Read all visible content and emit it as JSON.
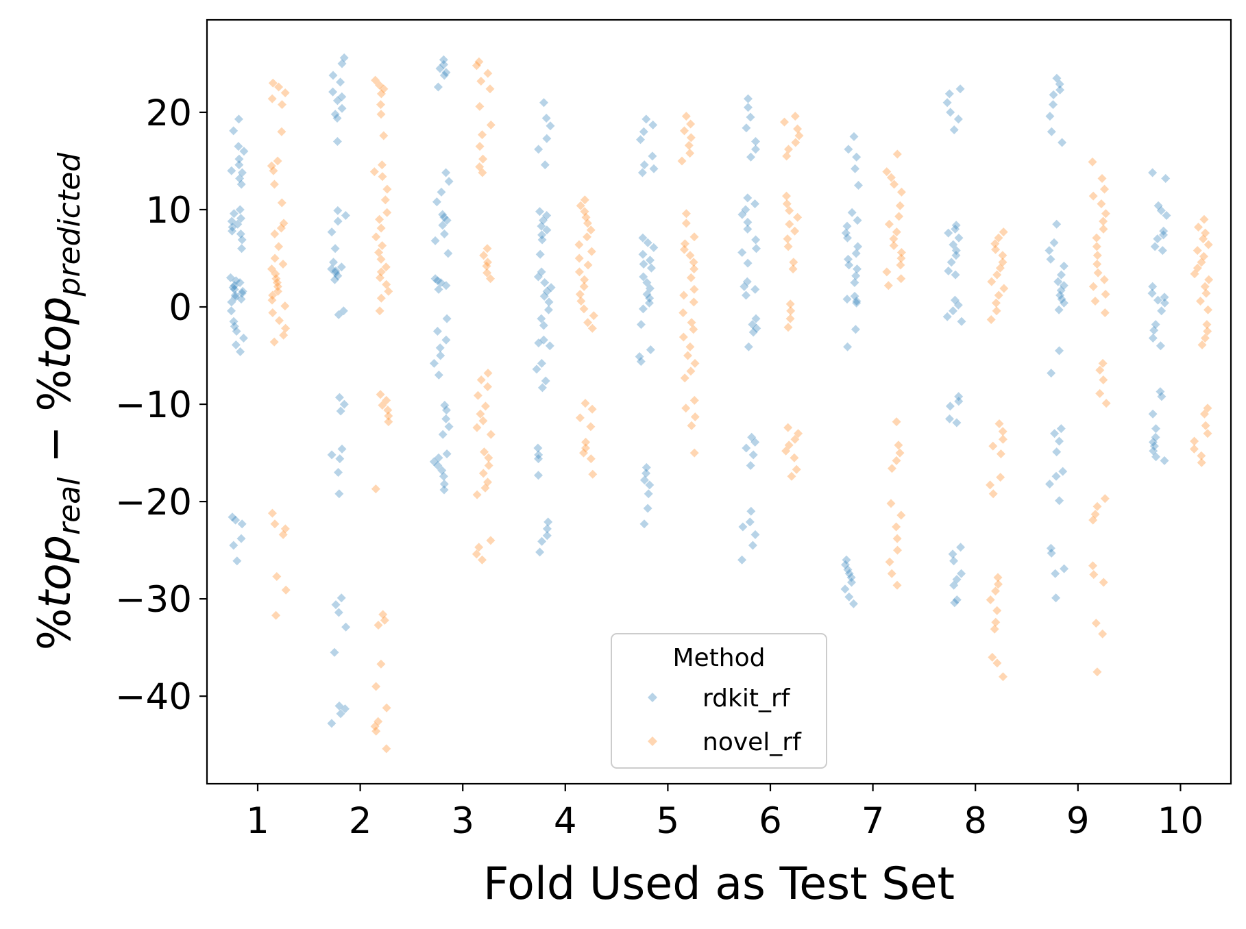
{
  "chart_data": {
    "type": "scatter",
    "subtype": "strip",
    "xlabel": "Fold Used as Test Set",
    "ylabel": {
      "prefix": "%",
      "term1": "top",
      "sub1": "real",
      "minus": " − %",
      "term2": "top",
      "sub2": "predicted"
    },
    "categories": [
      "1",
      "2",
      "3",
      "4",
      "5",
      "6",
      "7",
      "8",
      "9",
      "10"
    ],
    "yticks": [
      -40,
      -30,
      -20,
      -10,
      0,
      10,
      20
    ],
    "ytick_labels": [
      "−40",
      "−30",
      "−20",
      "−10",
      "0",
      "10",
      "20"
    ],
    "ylim": [
      -49,
      29.5
    ],
    "grid": false,
    "legend": {
      "title": "Method",
      "placement": "lower center"
    },
    "series": [
      {
        "name": "rdkit_rf",
        "color": "#1f77b4",
        "marker": "diamond",
        "values": [
          [
            19.3,
            18.1,
            16.5,
            16.0,
            15.2,
            14.6,
            14.0,
            13.8,
            13.2,
            12.6,
            10.0,
            9.6,
            9.1,
            8.8,
            8.5,
            8.2,
            7.8,
            7.5,
            6.9,
            6.0,
            3.0,
            2.7,
            2.5,
            2.2,
            2.0,
            1.8,
            1.6,
            1.4,
            1.2,
            1.0,
            0.8,
            0.5,
            -0.4,
            -1.5,
            -2.0,
            -2.5,
            -3.2,
            -3.9,
            -4.6,
            -21.6,
            -21.9,
            -22.3,
            -23.8,
            -24.5,
            -26.1
          ],
          [
            25.6,
            25.0,
            23.8,
            23.1,
            22.1,
            21.6,
            21.2,
            20.4,
            19.8,
            19.4,
            17.0,
            9.9,
            9.4,
            8.8,
            7.7,
            6.0,
            4.6,
            4.1,
            3.9,
            3.7,
            3.5,
            3.2,
            2.8,
            -0.4,
            -0.8,
            -9.3,
            -10.0,
            -10.7,
            -14.6,
            -15.2,
            -15.6,
            -17.0,
            -19.2,
            -29.9,
            -30.6,
            -31.4,
            -32.9,
            -35.5,
            -41.0,
            -41.3,
            -41.8,
            -42.8
          ],
          [
            25.4,
            24.9,
            24.5,
            24.1,
            23.8,
            22.6,
            13.8,
            12.9,
            11.8,
            10.8,
            9.5,
            9.2,
            8.9,
            8.4,
            7.5,
            6.8,
            5.5,
            2.9,
            2.7,
            2.5,
            2.2,
            1.8,
            -1.2,
            -2.5,
            -3.4,
            -4.2,
            -5.0,
            -5.8,
            -7.0,
            -10.1,
            -10.6,
            -11.5,
            -12.3,
            -13.1,
            -15.1,
            -15.5,
            -15.9,
            -16.3,
            -16.8,
            -17.4,
            -18.2,
            -18.8
          ],
          [
            21.0,
            19.4,
            18.6,
            17.3,
            16.2,
            14.6,
            9.8,
            9.4,
            8.9,
            8.3,
            7.9,
            7.4,
            6.9,
            5.4,
            3.6,
            3.1,
            2.5,
            2.0,
            1.6,
            1.1,
            0.5,
            -0.3,
            -1.2,
            -1.9,
            -3.4,
            -3.7,
            -4.0,
            -5.8,
            -6.4,
            -7.6,
            -8.3,
            -14.5,
            -15.2,
            -15.6,
            -17.3,
            -22.1,
            -22.8,
            -23.5,
            -24.1,
            -25.2
          ],
          [
            19.3,
            18.7,
            18.0,
            17.2,
            15.5,
            14.6,
            14.2,
            13.8,
            7.1,
            6.6,
            6.1,
            5.4,
            4.8,
            4.4,
            4.0,
            3.1,
            2.5,
            1.9,
            1.3,
            0.9,
            0.4,
            -0.2,
            -1.8,
            -4.4,
            -5.1,
            -5.6,
            -16.5,
            -17.1,
            -17.8,
            -18.3,
            -19.2,
            -20.7,
            -22.3
          ],
          [
            21.4,
            20.5,
            19.5,
            18.4,
            17.0,
            16.2,
            15.4,
            11.2,
            10.6,
            10.0,
            9.5,
            8.7,
            8.0,
            6.9,
            6.0,
            5.6,
            4.5,
            2.6,
            2.1,
            1.8,
            1.2,
            -1.2,
            -1.8,
            -2.2,
            -2.6,
            -4.1,
            -13.4,
            -13.9,
            -14.5,
            -15.2,
            -16.3,
            -21.0,
            -22.1,
            -22.6,
            -23.4,
            -24.5,
            -26.0
          ],
          [
            17.5,
            16.2,
            15.4,
            14.2,
            12.5,
            9.7,
            8.9,
            8.3,
            7.6,
            7.1,
            6.2,
            5.5,
            4.9,
            4.3,
            3.9,
            3.2,
            2.5,
            1.1,
            0.8,
            0.6,
            0.4,
            -2.3,
            -4.1,
            -26.0,
            -26.5,
            -27.0,
            -27.4,
            -27.8,
            -28.3,
            -29.0,
            -29.8,
            -30.5
          ],
          [
            22.4,
            21.9,
            21.0,
            20.0,
            19.3,
            18.2,
            8.4,
            8.0,
            7.6,
            7.1,
            6.4,
            5.8,
            5.3,
            4.6,
            3.7,
            3.3,
            0.7,
            0.2,
            -0.4,
            -1.0,
            -1.5,
            -9.2,
            -9.7,
            -10.2,
            -11.5,
            -11.9,
            -24.7,
            -25.4,
            -26.1,
            -27.4,
            -28.0,
            -28.6,
            -30.1,
            -30.4
          ],
          [
            23.5,
            22.9,
            22.3,
            21.8,
            20.8,
            19.6,
            18.0,
            16.9,
            8.5,
            6.6,
            5.8,
            4.9,
            4.2,
            3.3,
            2.6,
            2.2,
            1.7,
            1.2,
            0.8,
            0.4,
            -0.3,
            -4.5,
            -6.8,
            -12.5,
            -13.0,
            -13.8,
            -14.9,
            -16.9,
            -17.4,
            -18.2,
            -19.9,
            -24.8,
            -25.3,
            -26.9,
            -27.4,
            -29.9
          ],
          [
            13.8,
            13.2,
            10.4,
            9.9,
            9.4,
            7.8,
            7.4,
            7.0,
            6.2,
            5.8,
            2.1,
            1.4,
            1.0,
            0.7,
            0.4,
            -0.4,
            -1.8,
            -2.4,
            -3.2,
            -4.0,
            -8.7,
            -9.2,
            -11.0,
            -12.5,
            -13.4,
            -13.9,
            -14.3,
            -14.8,
            -15.4,
            -15.8
          ]
        ]
      },
      {
        "name": "novel_rf",
        "color": "#ff7f0e",
        "marker": "diamond",
        "values": [
          [
            23.0,
            22.6,
            22.0,
            21.4,
            20.8,
            18.0,
            15.0,
            14.5,
            14.0,
            12.6,
            10.7,
            8.6,
            8.1,
            7.5,
            6.2,
            5.0,
            4.4,
            3.9,
            3.4,
            2.9,
            2.5,
            2.1,
            1.6,
            1.2,
            0.7,
            0.1,
            -0.6,
            -1.4,
            -2.2,
            -2.9,
            -3.6,
            -21.2,
            -22.3,
            -22.8,
            -23.4,
            -27.7,
            -29.1,
            -31.7
          ],
          [
            23.3,
            22.8,
            22.4,
            21.9,
            20.8,
            19.8,
            17.6,
            14.6,
            13.9,
            13.4,
            12.1,
            11.0,
            9.7,
            9.0,
            8.1,
            7.2,
            6.3,
            5.6,
            4.9,
            4.1,
            3.6,
            3.0,
            2.3,
            1.6,
            0.9,
            -0.4,
            -9.0,
            -9.6,
            -10.1,
            -10.6,
            -11.2,
            -11.8,
            -18.7,
            -31.6,
            -32.2,
            -32.7,
            -36.7,
            -39.0,
            -41.2,
            -42.6,
            -43.1,
            -43.6,
            -45.4
          ],
          [
            25.2,
            24.8,
            24.0,
            23.2,
            22.4,
            20.6,
            18.7,
            17.7,
            16.5,
            15.2,
            14.4,
            13.8,
            6.0,
            5.3,
            4.6,
            4.2,
            3.5,
            2.9,
            -6.8,
            -7.5,
            -8.2,
            -9.1,
            -10.2,
            -11.0,
            -11.7,
            -12.4,
            -13.1,
            -14.9,
            -15.5,
            -16.3,
            -17.1,
            -18.0,
            -18.6,
            -19.3,
            -24.0,
            -24.7,
            -25.4,
            -26.0
          ],
          [
            11.0,
            10.4,
            9.8,
            9.2,
            8.6,
            7.9,
            7.2,
            6.4,
            5.7,
            5.0,
            4.3,
            3.6,
            2.8,
            2.1,
            1.3,
            0.6,
            -0.2,
            -0.9,
            -1.6,
            -2.2,
            -9.9,
            -10.5,
            -11.4,
            -12.3,
            -13.9,
            -14.5,
            -15.0,
            -15.6,
            -17.2
          ],
          [
            19.6,
            18.8,
            18.1,
            17.4,
            16.6,
            15.8,
            15.0,
            9.6,
            8.6,
            7.2,
            6.5,
            5.9,
            5.3,
            4.6,
            3.9,
            3.0,
            1.8,
            1.2,
            0.5,
            -0.6,
            -1.6,
            -2.3,
            -3.1,
            -4.1,
            -5.0,
            -5.8,
            -6.6,
            -7.3,
            -9.6,
            -10.4,
            -11.3,
            -12.2,
            -15.0
          ],
          [
            19.6,
            19.0,
            18.3,
            17.6,
            16.9,
            16.2,
            15.5,
            11.4,
            10.6,
            9.9,
            9.2,
            8.5,
            7.8,
            7.0,
            6.2,
            4.6,
            3.9,
            0.3,
            -0.4,
            -1.2,
            -2.1,
            -12.4,
            -13.0,
            -13.6,
            -14.2,
            -14.8,
            -15.5,
            -16.7,
            -17.4
          ],
          [
            15.7,
            13.9,
            13.3,
            12.6,
            11.8,
            10.4,
            9.3,
            8.5,
            7.7,
            7.0,
            6.3,
            5.6,
            5.0,
            4.3,
            3.6,
            2.9,
            2.2,
            -11.8,
            -14.2,
            -15.0,
            -15.8,
            -16.6,
            -20.2,
            -21.4,
            -22.6,
            -23.8,
            -25.0,
            -26.2,
            -27.4,
            -28.6
          ],
          [
            7.7,
            7.1,
            6.5,
            5.9,
            5.3,
            4.6,
            4.0,
            3.3,
            2.6,
            1.9,
            1.2,
            0.4,
            -0.4,
            -1.3,
            -12.0,
            -12.8,
            -13.6,
            -14.3,
            -15.1,
            -17.5,
            -18.3,
            -19.2,
            -27.8,
            -28.5,
            -29.2,
            -30.1,
            -31.2,
            -32.4,
            -33.1,
            -36.0,
            -36.6,
            -38.0
          ],
          [
            14.9,
            13.2,
            12.1,
            11.4,
            10.6,
            9.6,
            8.8,
            8.0,
            7.1,
            6.2,
            5.3,
            4.4,
            3.5,
            2.8,
            2.1,
            1.3,
            0.6,
            -0.6,
            -5.8,
            -6.5,
            -7.5,
            -8.9,
            -9.9,
            -19.7,
            -20.5,
            -21.3,
            -21.9,
            -26.6,
            -27.5,
            -28.3,
            -32.5,
            -33.6,
            -37.5
          ],
          [
            9.0,
            8.2,
            7.6,
            7.0,
            6.4,
            5.8,
            5.2,
            4.6,
            4.0,
            3.4,
            2.8,
            2.1,
            1.4,
            0.6,
            -0.3,
            -1.8,
            -2.5,
            -3.2,
            -3.9,
            -10.4,
            -11.0,
            -12.2,
            -13.0,
            -13.8,
            -14.6,
            -15.3,
            -16.0
          ]
        ]
      }
    ]
  }
}
